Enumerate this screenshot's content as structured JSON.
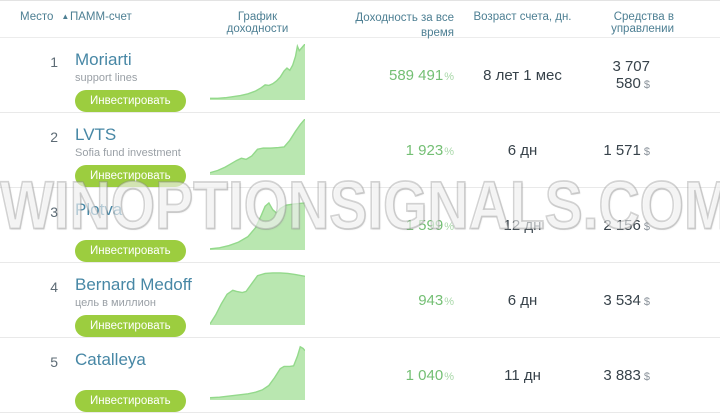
{
  "watermark": "WINOPTIONSIGNALS.COM",
  "colors": {
    "header_text": "#4d7f93",
    "account_link": "#4787a5",
    "profit_green": "#74bf74",
    "button_green": "#9ccd3f",
    "chart_fill": "#b9e7b0",
    "chart_line": "#93d98b",
    "value_dark": "#37424a"
  },
  "header": {
    "rank": "Место",
    "sort_icon": "▲",
    "account": "ПАММ-счет",
    "chart": "График доходности",
    "profit_line1": "Доходность за все",
    "profit_line2": "время",
    "age": "Возраст счета, дн.",
    "funds": "Средства в управлении"
  },
  "rows": [
    {
      "rank": "1",
      "name": "Moriarti",
      "subtitle": "support lines",
      "invest_label": "Инвестировать",
      "profit": "589 491",
      "profit_suffix": "%",
      "age": "8 лет 1 мес",
      "funds": "3 707 580",
      "currency": "$",
      "chart_points": [
        [
          0,
          3
        ],
        [
          8,
          3
        ],
        [
          16,
          4
        ],
        [
          24,
          6
        ],
        [
          32,
          8
        ],
        [
          40,
          11
        ],
        [
          48,
          16
        ],
        [
          54,
          22
        ],
        [
          58,
          27
        ],
        [
          62,
          26
        ],
        [
          66,
          29
        ],
        [
          70,
          34
        ],
        [
          74,
          41
        ],
        [
          78,
          52
        ],
        [
          81,
          57
        ],
        [
          84,
          53
        ],
        [
          87,
          62
        ],
        [
          90,
          78
        ],
        [
          92,
          96
        ],
        [
          94,
          88
        ],
        [
          97,
          94
        ],
        [
          100,
          100
        ]
      ]
    },
    {
      "rank": "2",
      "name": "LVTS",
      "subtitle": "Sofia fund investment",
      "invest_label": "Инвестировать",
      "profit": "1 923",
      "profit_suffix": "%",
      "age": "6 дн",
      "funds": "1 571",
      "currency": "$",
      "chart_points": [
        [
          0,
          4
        ],
        [
          8,
          8
        ],
        [
          16,
          14
        ],
        [
          22,
          20
        ],
        [
          28,
          26
        ],
        [
          33,
          30
        ],
        [
          38,
          28
        ],
        [
          44,
          34
        ],
        [
          50,
          46
        ],
        [
          56,
          48
        ],
        [
          64,
          48
        ],
        [
          72,
          49
        ],
        [
          78,
          50
        ],
        [
          84,
          62
        ],
        [
          90,
          78
        ],
        [
          95,
          90
        ],
        [
          100,
          100
        ]
      ]
    },
    {
      "rank": "3",
      "name": "Plotva",
      "subtitle": "",
      "invest_label": "Инвестировать",
      "profit": "1 599",
      "profit_suffix": "%",
      "age": "12 дн",
      "funds": "2 156",
      "currency": "$",
      "chart_points": [
        [
          0,
          2
        ],
        [
          10,
          4
        ],
        [
          20,
          8
        ],
        [
          30,
          14
        ],
        [
          40,
          24
        ],
        [
          48,
          40
        ],
        [
          54,
          62
        ],
        [
          58,
          78
        ],
        [
          62,
          84
        ],
        [
          66,
          72
        ],
        [
          70,
          66
        ],
        [
          74,
          74
        ],
        [
          80,
          80
        ],
        [
          88,
          82
        ],
        [
          100,
          84
        ]
      ]
    },
    {
      "rank": "4",
      "name": "Bernard Medoff",
      "subtitle": "цель в миллион",
      "invest_label": "Инвестировать",
      "profit": "943",
      "profit_suffix": "%",
      "age": "6 дн",
      "funds": "3 534",
      "currency": "$",
      "chart_points": [
        [
          0,
          2
        ],
        [
          6,
          18
        ],
        [
          12,
          38
        ],
        [
          18,
          55
        ],
        [
          24,
          62
        ],
        [
          28,
          60
        ],
        [
          34,
          58
        ],
        [
          38,
          60
        ],
        [
          44,
          74
        ],
        [
          50,
          88
        ],
        [
          58,
          92
        ],
        [
          66,
          93
        ],
        [
          74,
          93
        ],
        [
          82,
          92
        ],
        [
          90,
          90
        ],
        [
          100,
          87
        ]
      ]
    },
    {
      "rank": "5",
      "name": "Catalleya",
      "subtitle": "",
      "invest_label": "Инвестировать",
      "profit": "1 040",
      "profit_suffix": "%",
      "age": "11 дн",
      "funds": "3 883",
      "currency": "$",
      "chart_points": [
        [
          0,
          4
        ],
        [
          10,
          5
        ],
        [
          20,
          7
        ],
        [
          30,
          9
        ],
        [
          40,
          11
        ],
        [
          48,
          14
        ],
        [
          55,
          18
        ],
        [
          62,
          26
        ],
        [
          68,
          40
        ],
        [
          74,
          56
        ],
        [
          78,
          60
        ],
        [
          84,
          60
        ],
        [
          88,
          61
        ],
        [
          92,
          78
        ],
        [
          95,
          95
        ],
        [
          98,
          92
        ],
        [
          100,
          88
        ]
      ]
    }
  ]
}
